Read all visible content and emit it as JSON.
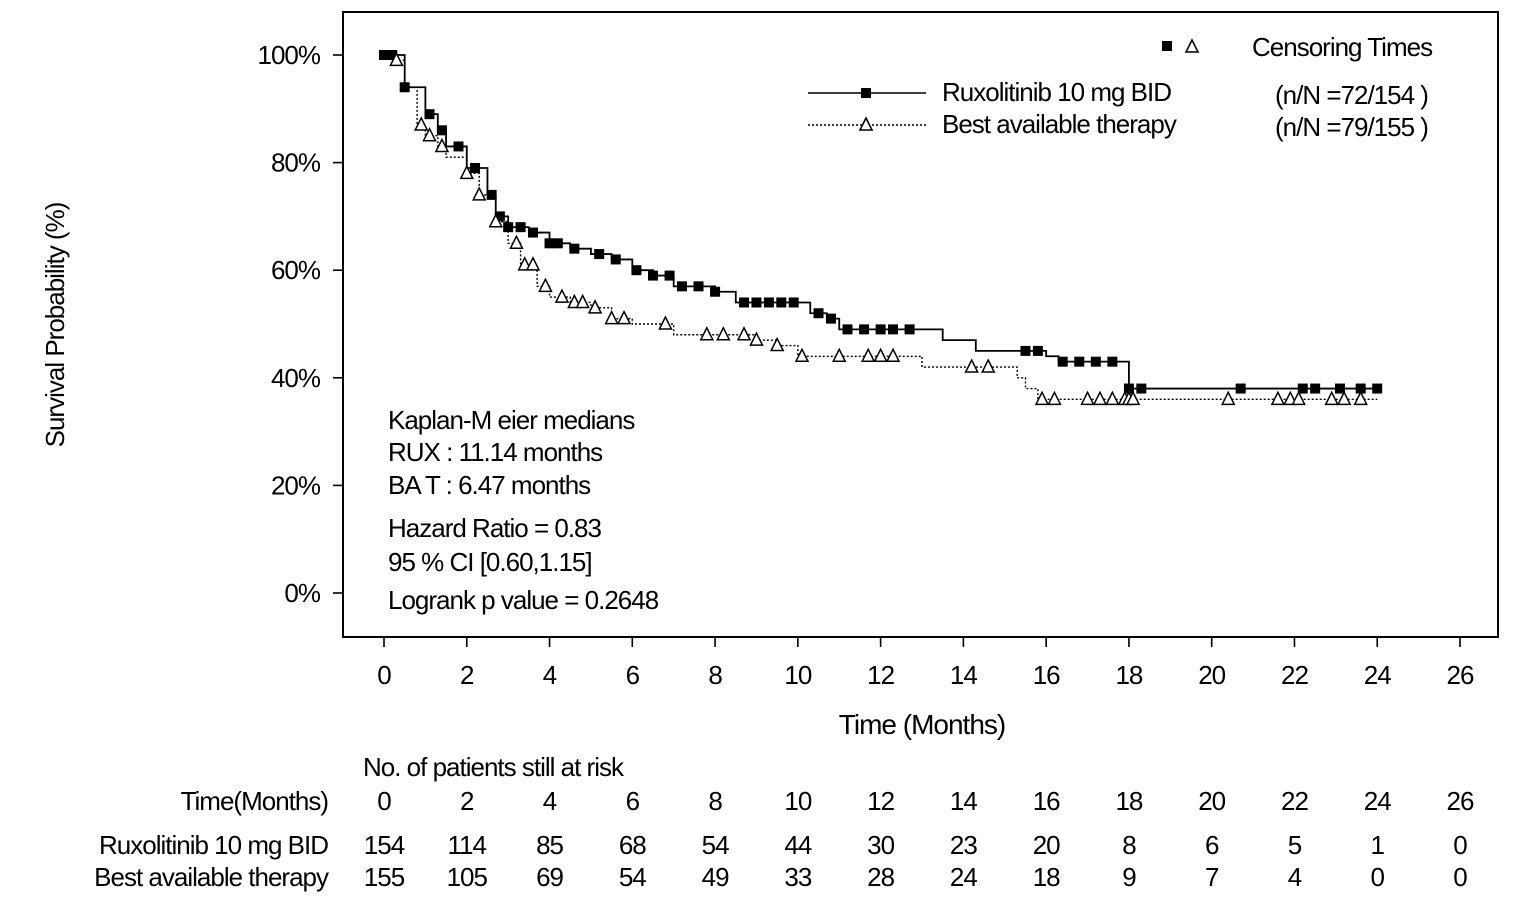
{
  "chart_data": {
    "type": "line",
    "subtype": "kaplan-meier step",
    "xlabel": "Time (Months)",
    "ylabel": "Survival Probability (%)",
    "xlim": [
      0,
      26
    ],
    "ylim": [
      0,
      100
    ],
    "xticks": [
      0,
      2,
      4,
      6,
      8,
      10,
      12,
      14,
      16,
      18,
      20,
      22,
      24,
      26
    ],
    "yticks": [
      0,
      20,
      40,
      60,
      80,
      100
    ],
    "ytick_labels": [
      "0%",
      "20%",
      "40%",
      "60%",
      "80%",
      "100%"
    ],
    "grid": false,
    "legend": {
      "placement": "top-right",
      "censor_title": "Censoring Times",
      "entries": [
        {
          "label": "Ruxolitinib 10 mg BID",
          "nN": "(n/N =72/154  )",
          "line": "solid",
          "marker": "square"
        },
        {
          "label": "Best available therapy",
          "nN": "(n/N =79/155  )",
          "line": "dotted",
          "marker": "triangle"
        }
      ]
    },
    "series": [
      {
        "name": "Ruxolitinib 10 mg BID",
        "x": [
          0,
          0.3,
          0.5,
          1,
          1.3,
          1.5,
          2,
          2.5,
          2.7,
          3,
          3.5,
          4,
          4.5,
          5,
          5.5,
          6,
          6.5,
          7,
          8,
          8.5,
          10.3,
          10.7,
          11,
          13.5,
          14.3,
          16,
          16.3,
          18,
          24
        ],
        "y": [
          100,
          100,
          94,
          89,
          86,
          83,
          79,
          74,
          70,
          68,
          67,
          65,
          64,
          63,
          62,
          60,
          59,
          57,
          56,
          54,
          52,
          51,
          49,
          47,
          45,
          44,
          43,
          38,
          38
        ],
        "censored_x": [
          0,
          0.2,
          0.5,
          1.1,
          1.4,
          1.8,
          2.2,
          2.6,
          2.8,
          3,
          3.3,
          3.6,
          4,
          4.2,
          4.6,
          5.2,
          5.6,
          6.1,
          6.5,
          6.9,
          7.2,
          7.6,
          8,
          8.7,
          9,
          9.3,
          9.6,
          9.9,
          10.5,
          10.8,
          11.2,
          11.6,
          12,
          12.3,
          12.7,
          15.5,
          15.8,
          16.4,
          16.8,
          17.2,
          17.6,
          18,
          18.3,
          20.7,
          22.2,
          22.5,
          23.1,
          23.6,
          24
        ]
      },
      {
        "name": "Best available therapy",
        "x": [
          0,
          0.3,
          0.5,
          0.8,
          1,
          1.3,
          1.5,
          2,
          2.3,
          2.7,
          3,
          3.3,
          3.7,
          4,
          4.5,
          5,
          5.5,
          6,
          7,
          9,
          9.5,
          10,
          13,
          15.3,
          15.5,
          15.8,
          24
        ],
        "y": [
          100,
          99,
          94,
          87,
          85,
          83,
          81,
          78,
          74,
          69,
          65,
          61,
          57,
          55,
          54,
          53,
          51,
          50,
          48,
          47,
          46,
          44,
          42,
          40,
          38,
          36,
          36
        ],
        "censored_x": [
          0.3,
          0.9,
          1.1,
          1.4,
          2,
          2.3,
          2.7,
          3.2,
          3.4,
          3.6,
          3.9,
          4.3,
          4.6,
          4.8,
          5.1,
          5.5,
          5.8,
          6.8,
          7.8,
          8.2,
          8.7,
          9,
          9.5,
          10.1,
          11,
          11.7,
          12,
          12.3,
          14.2,
          14.6,
          15.9,
          16.2,
          17,
          17.3,
          17.6,
          17.9,
          18,
          18.1,
          20.4,
          21.6,
          21.9,
          22.1,
          22.9,
          23.2,
          23.6
        ]
      }
    ],
    "annotations": [
      "Kaplan-M eier medians",
      "RUX : 11.14 months",
      "BA T : 6.47 months",
      "Hazard Ratio =   0.83",
      "95 % CI [0.60,1.15]",
      "Logrank p value = 0.2648"
    ],
    "risk_table": {
      "title": "No. of patients still at risk",
      "header_label": "Time(Months)",
      "times": [
        "0",
        "2",
        "4",
        "6",
        "8",
        "10",
        "12",
        "14",
        "16",
        "18",
        "20",
        "22",
        "24",
        "26"
      ],
      "rows": [
        {
          "label": "Ruxolitinib 10 mg BID",
          "values": [
            "154",
            "114",
            "85",
            "68",
            "54",
            "44",
            "30",
            "23",
            "20",
            "8",
            "6",
            "5",
            "1",
            "0"
          ]
        },
        {
          "label": "Best available therapy",
          "values": [
            "155",
            "105",
            "69",
            "54",
            "49",
            "33",
            "28",
            "24",
            "18",
            "9",
            "7",
            "4",
            "0",
            "0"
          ]
        }
      ]
    }
  }
}
